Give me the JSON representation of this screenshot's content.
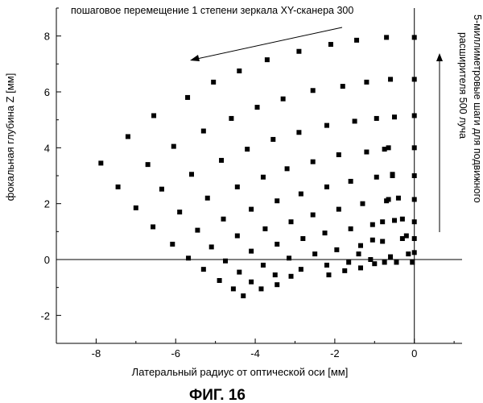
{
  "chart_data": {
    "type": "scatter",
    "xlabel": "Латеральный радиус от оптической оси [мм]",
    "ylabel": "фокальная глубина Z [мм]",
    "xlim": [
      -9,
      1.2
    ],
    "ylim": [
      -3,
      9
    ],
    "x_ticks": [
      -8,
      -6,
      -4,
      -2,
      0
    ],
    "y_ticks": [
      -2,
      0,
      2,
      4,
      6,
      8
    ],
    "grid": false,
    "annotations": {
      "top": "пошаговое перемещение 1 степени зеркала XY-сканера 300",
      "right": [
        "5-миллиметровые шаги для подвижного",
        "расширителя 500 луча"
      ]
    },
    "caption": "ФИГ. 16",
    "series": [
      {
        "points": [
          [
            -7.88,
            3.45
          ],
          [
            -7.45,
            2.6
          ],
          [
            -7.0,
            1.85
          ],
          [
            -6.57,
            1.17
          ],
          [
            -6.08,
            0.55
          ],
          [
            -5.68,
            0.05
          ],
          [
            -5.3,
            -0.35
          ],
          [
            -4.9,
            -0.75
          ],
          [
            -4.55,
            -1.05
          ],
          [
            -4.3,
            -1.3
          ],
          [
            -7.2,
            4.4
          ],
          [
            -6.7,
            3.4
          ],
          [
            -6.35,
            2.52
          ],
          [
            -5.9,
            1.7
          ],
          [
            -5.45,
            1.05
          ],
          [
            -5.1,
            0.45
          ],
          [
            -4.75,
            -0.05
          ],
          [
            -4.4,
            -0.45
          ],
          [
            -4.1,
            -0.8
          ],
          [
            -3.85,
            -1.05
          ],
          [
            -6.55,
            5.15
          ],
          [
            -6.05,
            4.05
          ],
          [
            -5.6,
            3.05
          ],
          [
            -5.2,
            2.2
          ],
          [
            -4.8,
            1.45
          ],
          [
            -4.45,
            0.85
          ],
          [
            -4.1,
            0.3
          ],
          [
            -3.8,
            -0.2
          ],
          [
            -3.5,
            -0.55
          ],
          [
            -3.45,
            -0.9
          ],
          [
            -5.7,
            5.8
          ],
          [
            -5.3,
            4.6
          ],
          [
            -4.85,
            3.55
          ],
          [
            -4.45,
            2.6
          ],
          [
            -4.1,
            1.8
          ],
          [
            -3.75,
            1.1
          ],
          [
            -3.45,
            0.55
          ],
          [
            -3.15,
            0.05
          ],
          [
            -2.85,
            -0.35
          ],
          [
            -3.1,
            -0.6
          ],
          [
            -5.05,
            6.35
          ],
          [
            -4.6,
            5.05
          ],
          [
            -4.2,
            3.95
          ],
          [
            -3.8,
            2.95
          ],
          [
            -3.45,
            2.1
          ],
          [
            -3.1,
            1.35
          ],
          [
            -2.8,
            0.75
          ],
          [
            -2.5,
            0.2
          ],
          [
            -2.2,
            -0.2
          ],
          [
            -4.4,
            6.75
          ],
          [
            -3.95,
            5.45
          ],
          [
            -3.55,
            4.3
          ],
          [
            -3.2,
            3.25
          ],
          [
            -2.85,
            2.35
          ],
          [
            -2.55,
            1.6
          ],
          [
            -2.25,
            0.95
          ],
          [
            -1.95,
            0.35
          ],
          [
            -1.65,
            -0.1
          ],
          [
            -3.7,
            7.15
          ],
          [
            -3.3,
            5.75
          ],
          [
            -2.9,
            4.55
          ],
          [
            -2.55,
            3.5
          ],
          [
            -2.2,
            2.6
          ],
          [
            -1.9,
            1.8
          ],
          [
            -1.6,
            1.1
          ],
          [
            -1.35,
            0.5
          ],
          [
            -1.1,
            0.0
          ],
          [
            -2.9,
            7.45
          ],
          [
            -2.55,
            6.05
          ],
          [
            -2.2,
            4.8
          ],
          [
            -1.9,
            3.75
          ],
          [
            -1.6,
            2.8
          ],
          [
            -1.3,
            2.0
          ],
          [
            -1.05,
            1.25
          ],
          [
            -0.8,
            0.65
          ],
          [
            -0.6,
            0.1
          ],
          [
            -2.1,
            7.7
          ],
          [
            -1.8,
            6.2
          ],
          [
            -1.5,
            4.95
          ],
          [
            -1.2,
            3.85
          ],
          [
            -0.95,
            2.95
          ],
          [
            -0.7,
            2.1
          ],
          [
            -0.5,
            1.4
          ],
          [
            -0.3,
            0.75
          ],
          [
            -0.15,
            0.2
          ],
          [
            -1.45,
            7.85
          ],
          [
            -1.2,
            6.35
          ],
          [
            -0.95,
            5.05
          ],
          [
            -0.75,
            3.95
          ],
          [
            -0.55,
            3.05
          ],
          [
            -0.4,
            2.2
          ],
          [
            -0.3,
            1.45
          ],
          [
            -0.2,
            0.85
          ],
          [
            -0.45,
            -0.1
          ],
          [
            -0.7,
            7.95
          ],
          [
            -0.6,
            6.45
          ],
          [
            -0.5,
            5.1
          ],
          [
            -0.65,
            4.0
          ],
          [
            -0.55,
            3.0
          ],
          [
            -0.65,
            2.15
          ],
          [
            -0.8,
            1.35
          ],
          [
            -1.05,
            0.7
          ],
          [
            -1.4,
            0.2
          ],
          [
            -0.75,
            -0.1
          ],
          [
            -1.0,
            -0.15
          ],
          [
            -1.35,
            -0.3
          ],
          [
            -1.75,
            -0.4
          ],
          [
            -2.15,
            -0.55
          ],
          [
            0.0,
            7.95
          ],
          [
            0.0,
            6.45
          ],
          [
            0.0,
            5.15
          ],
          [
            0.0,
            4.0
          ],
          [
            0.0,
            3.0
          ],
          [
            0.0,
            2.15
          ],
          [
            0.0,
            1.35
          ],
          [
            0.0,
            0.75
          ],
          [
            0.0,
            0.25
          ],
          [
            -0.05,
            -0.1
          ]
        ]
      }
    ]
  }
}
